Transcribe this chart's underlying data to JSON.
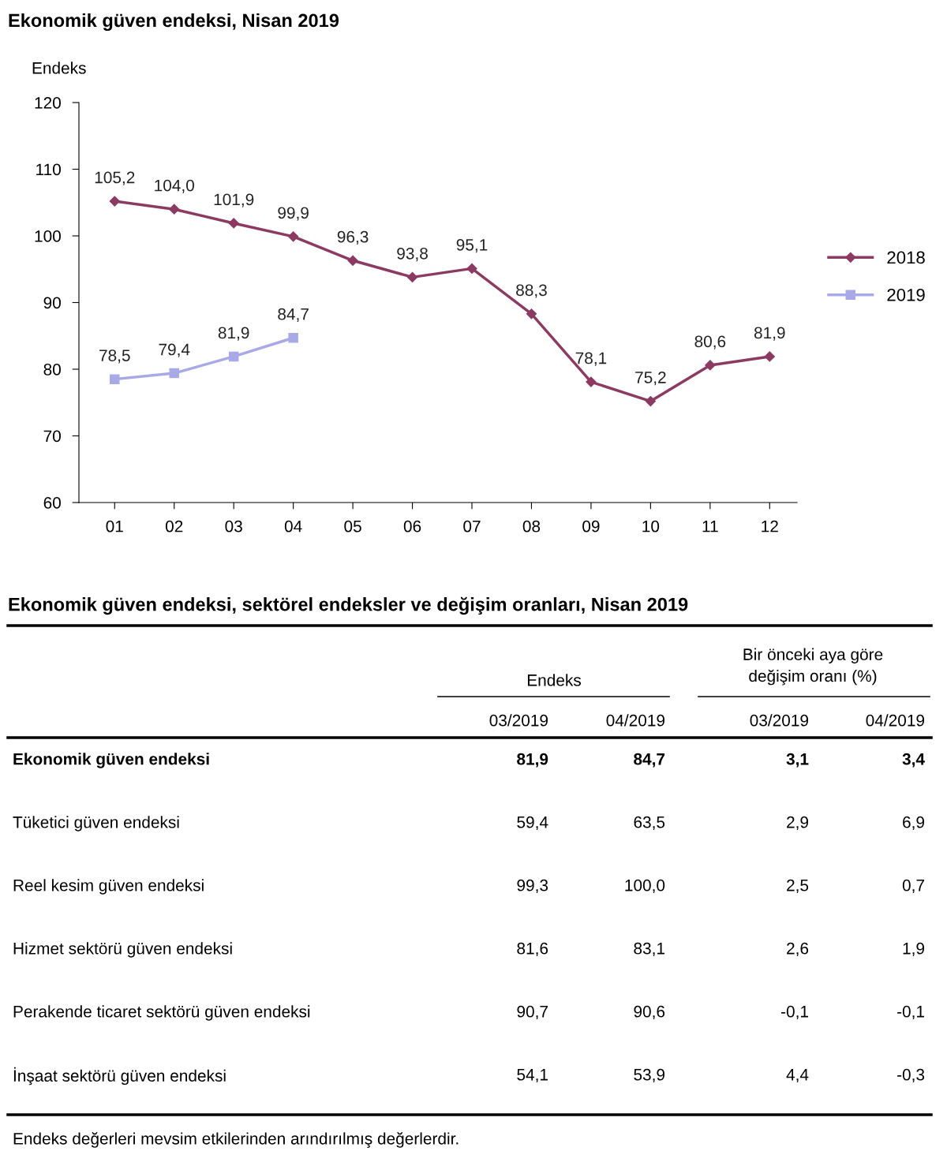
{
  "chart_data": [
    {
      "type": "line",
      "title": "Ekonomik güven endeksi, Nisan 2019",
      "ylabel": "Endeks",
      "categories": [
        "01",
        "02",
        "03",
        "04",
        "05",
        "06",
        "07",
        "08",
        "09",
        "10",
        "11",
        "12"
      ],
      "series": [
        {
          "name": "2018",
          "color": "#8b3a62",
          "marker": "diamond",
          "values": [
            105.2,
            104.0,
            101.9,
            99.9,
            96.3,
            93.8,
            95.1,
            88.3,
            78.1,
            75.2,
            80.6,
            81.9
          ],
          "value_labels": [
            "105,2",
            "104,0",
            "101,9",
            "99,9",
            "96,3",
            "93,8",
            "95,1",
            "88,3",
            "78,1",
            "75,2",
            "80,6",
            "81,9"
          ]
        },
        {
          "name": "2019",
          "color": "#a9a9e8",
          "marker": "square",
          "values": [
            78.5,
            79.4,
            81.9,
            84.7,
            null,
            null,
            null,
            null,
            null,
            null,
            null,
            null
          ],
          "value_labels": [
            "78,5",
            "79,4",
            "81,9",
            "84,7",
            null,
            null,
            null,
            null,
            null,
            null,
            null,
            null
          ]
        }
      ],
      "ylim": [
        60,
        120
      ],
      "yticks": [
        60,
        70,
        80,
        90,
        100,
        110,
        120
      ],
      "grid": false,
      "legend": "right"
    },
    {
      "type": "other",
      "title": "Ekonomik güven endeksi, sektörel endeksler ve değişim oranları, Nisan 2019",
      "annotations": [
        "Endeks",
        "Bir önceki aya göre\ndeğişim oranı (%)",
        "03/2019",
        "04/2019",
        "03/2019",
        "04/2019",
        "Ekonomik güven endeksi",
        "81,9",
        "84,7",
        "3,1",
        "3,4",
        "Tüketici güven endeksi",
        "59,4",
        "63,5",
        "2,9",
        "6,9",
        "Reel kesim güven endeksi",
        "99,3",
        "100,0",
        "2,5",
        "0,7",
        "Hizmet sektörü güven endeksi",
        "81,6",
        "83,1",
        "2,6",
        "1,9",
        "Perakende ticaret sektörü güven endeksi",
        "90,7",
        "90,6",
        "-0,1",
        "-0,1",
        "İnşaat sektörü güven endeksi",
        "54,1",
        "53,9",
        "4,4",
        "-0,3",
        "Endeks değerleri mevsim etkilerinden arındırılmış değerlerdir."
      ]
    }
  ]
}
